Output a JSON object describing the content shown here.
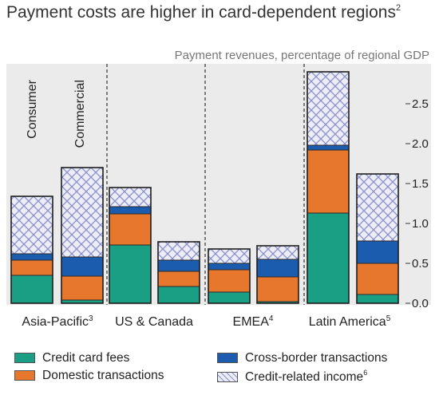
{
  "title": "Payment costs are higher in card-dependent regions",
  "title_note": "2",
  "chart_data": {
    "type": "bar",
    "stacked": true,
    "subtitle": "Payment revenues, percentage of regional GDP",
    "ylim": [
      0,
      2.92
    ],
    "yticks": [
      "0.0",
      "0.5",
      "1.0",
      "1.5",
      "2.0",
      "2.5"
    ],
    "bar_type_labels": [
      "Consumer",
      "Commercial"
    ],
    "groups": [
      {
        "name": "Asia-Pacific",
        "note": "3",
        "bars": [
          "Consumer",
          "Commercial"
        ]
      },
      {
        "name": "US & Canada",
        "note": "",
        "bars": [
          "Consumer",
          "Commercial"
        ]
      },
      {
        "name": "EMEA",
        "note": "4",
        "bars": [
          "Consumer",
          "Commercial"
        ]
      },
      {
        "name": "Latin America",
        "note": "5",
        "bars": [
          "Consumer",
          "Commercial"
        ]
      }
    ],
    "series": [
      {
        "name": "Credit card fees",
        "note": "",
        "color": "#1a9e84",
        "pattern": "solid",
        "values": [
          0.35,
          0.04,
          0.73,
          0.21,
          0.14,
          0.02,
          1.13,
          0.11
        ]
      },
      {
        "name": "Domestic transactions",
        "note": "",
        "color": "#e8772e",
        "pattern": "solid",
        "values": [
          0.19,
          0.3,
          0.39,
          0.19,
          0.28,
          0.31,
          0.79,
          0.39
        ]
      },
      {
        "name": "Cross-border transactions",
        "note": "",
        "color": "#1c5cae",
        "pattern": "solid",
        "values": [
          0.08,
          0.24,
          0.09,
          0.14,
          0.08,
          0.22,
          0.06,
          0.28
        ]
      },
      {
        "name": "Credit-related income",
        "note": "6",
        "color": "#c7cbe8",
        "pattern": "crosshatch",
        "values": [
          0.72,
          1.12,
          0.24,
          0.23,
          0.18,
          0.17,
          0.92,
          0.84
        ]
      }
    ],
    "legend_position": "bottom",
    "grid": false
  }
}
